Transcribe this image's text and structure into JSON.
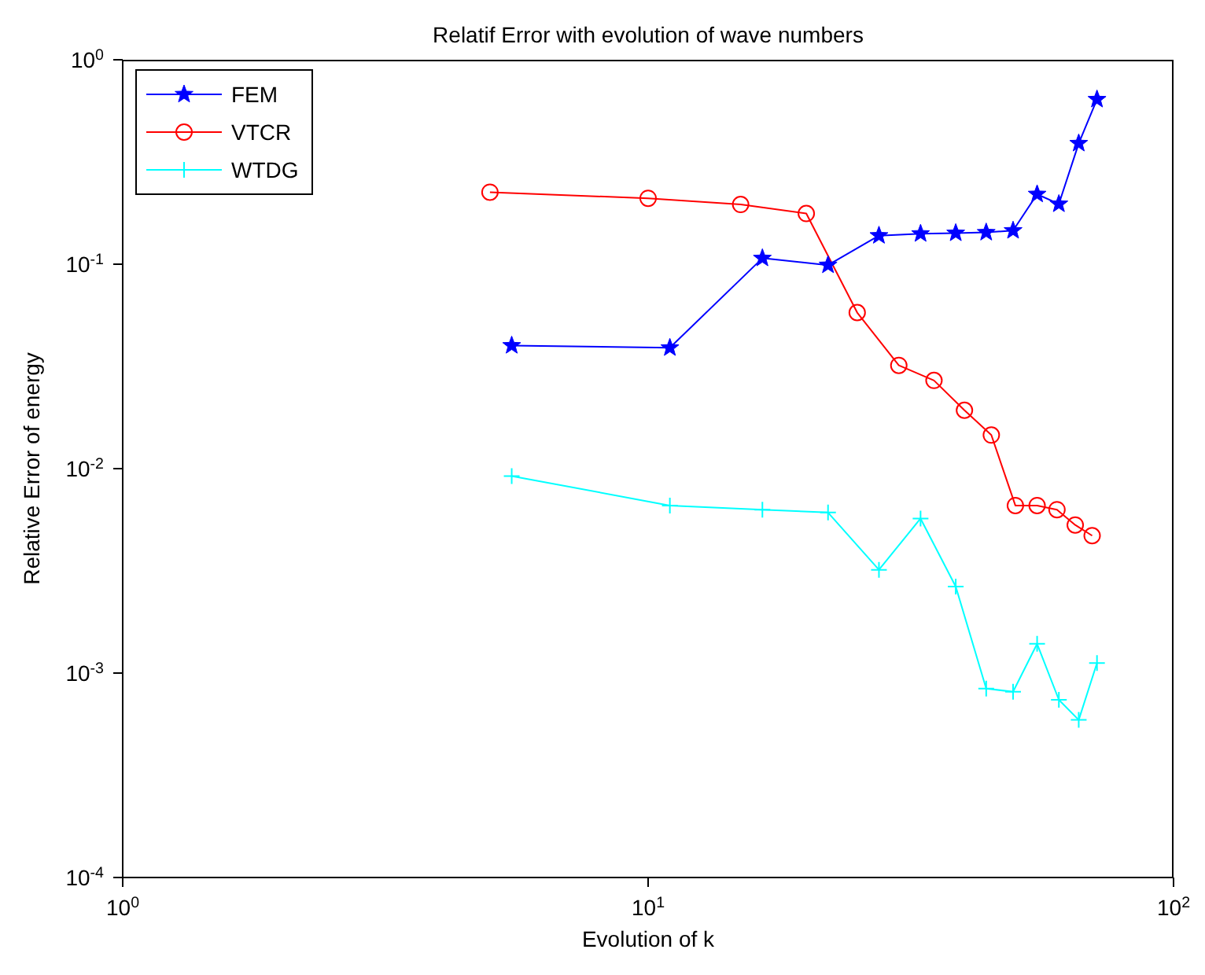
{
  "chart_data": {
    "type": "line",
    "title": "Relatif Error with evolution of wave numbers",
    "xlabel": "Evolution of k",
    "ylabel": "Relative Error of energy",
    "log": "xy",
    "xlim": [
      1,
      100
    ],
    "xticks": [
      {
        "value": 1,
        "label": "10$^{0}$"
      },
      {
        "value": 10,
        "label": "10$^{1}$"
      },
      {
        "value": 100,
        "label": "10$^{2}$"
      }
    ],
    "ylim": [
      0.0001,
      1
    ],
    "yticks": [
      {
        "value": 0.0001,
        "label": "10$^{-4}$"
      },
      {
        "value": 0.001,
        "label": "10$^{-3}$"
      },
      {
        "value": 0.01,
        "label": "10$^{-2}$"
      },
      {
        "value": 0.1,
        "label": "10$^{-1}$"
      },
      {
        "value": 1,
        "label": "10$^{0}$"
      }
    ],
    "legend": "top left",
    "series": [
      {
        "name": "FEM",
        "color": "#0000ff",
        "marker": "star",
        "x": [
          5.5,
          11,
          16.5,
          22,
          27.5,
          33,
          38.5,
          44,
          49.5,
          55,
          60.5,
          66,
          71.5
        ],
        "values": [
          0.04,
          0.039,
          0.107,
          0.099,
          0.138,
          0.141,
          0.142,
          0.143,
          0.146,
          0.22,
          0.197,
          0.39,
          0.64
        ]
      },
      {
        "name": "VTCR",
        "color": "#ff0000",
        "marker": "circle",
        "x": [
          5,
          10,
          15,
          20,
          25,
          30,
          35,
          40,
          45,
          50,
          55,
          60,
          65,
          70
        ],
        "values": [
          0.225,
          0.21,
          0.196,
          0.177,
          0.058,
          0.032,
          0.027,
          0.0193,
          0.0146,
          0.0066,
          0.0066,
          0.0063,
          0.0053,
          0.0047
        ]
      },
      {
        "name": "WTDG",
        "color": "#00ffff",
        "marker": "cross",
        "x": [
          5.5,
          11,
          16.5,
          22,
          27.5,
          33,
          38.5,
          44,
          49.5,
          55,
          60.5,
          66,
          71.5
        ],
        "values": [
          0.0092,
          0.0066,
          0.0063,
          0.0061,
          0.0032,
          0.0057,
          0.00265,
          0.00084,
          0.00081,
          0.00139,
          0.00074,
          0.00059,
          0.00112
        ]
      }
    ]
  }
}
